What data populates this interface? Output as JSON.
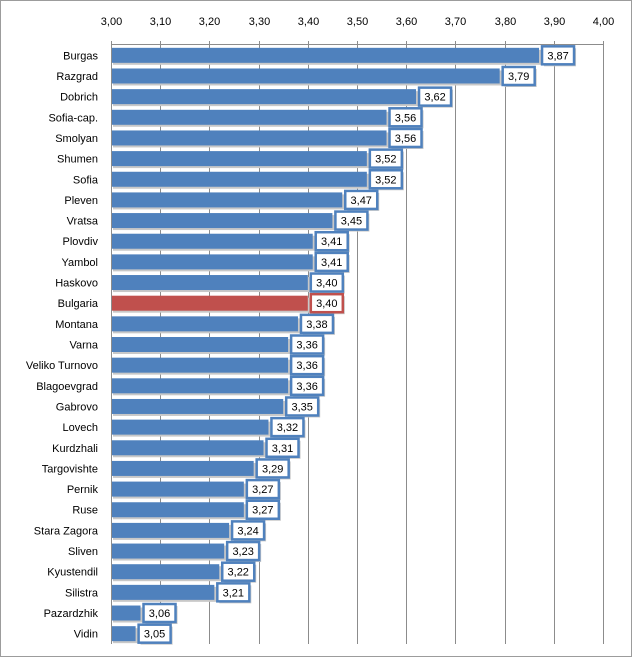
{
  "chart_data": {
    "type": "bar",
    "orientation": "horizontal",
    "categories": [
      "Burgas",
      "Razgrad",
      "Dobrich",
      "Sofia-cap.",
      "Smolyan",
      "Shumen",
      "Sofia",
      "Pleven",
      "Vratsa",
      "Plovdiv",
      "Yambol",
      "Haskovo",
      "Bulgaria",
      "Montana",
      "Varna",
      "Veliko Turnovo",
      "Blagoevgrad",
      "Gabrovo",
      "Lovech",
      "Kurdzhali",
      "Targovishte",
      "Pernik",
      "Ruse",
      "Stara Zagora",
      "Sliven",
      "Kyustendil",
      "Silistra",
      "Pazardzhik",
      "Vidin"
    ],
    "values": [
      3.87,
      3.79,
      3.62,
      3.56,
      3.56,
      3.52,
      3.52,
      3.47,
      3.45,
      3.41,
      3.41,
      3.4,
      3.4,
      3.38,
      3.36,
      3.36,
      3.36,
      3.35,
      3.32,
      3.31,
      3.29,
      3.27,
      3.27,
      3.24,
      3.23,
      3.22,
      3.21,
      3.06,
      3.05
    ],
    "value_labels": [
      "3,87",
      "3,79",
      "3,62",
      "3,56",
      "3,56",
      "3,52",
      "3,52",
      "3,47",
      "3,45",
      "3,41",
      "3,41",
      "3,40",
      "3,40",
      "3,38",
      "3,36",
      "3,36",
      "3,36",
      "3,35",
      "3,32",
      "3,31",
      "3,29",
      "3,27",
      "3,27",
      "3,24",
      "3,23",
      "3,22",
      "3,21",
      "3,06",
      "3,05"
    ],
    "xlim": [
      3.0,
      4.0
    ],
    "ticks": [
      3.0,
      3.1,
      3.2,
      3.3,
      3.4,
      3.5,
      3.6,
      3.7,
      3.8,
      3.9,
      4.0
    ],
    "tick_labels": [
      "3,00",
      "3,10",
      "3,20",
      "3,30",
      "3,40",
      "3,50",
      "3,60",
      "3,70",
      "3,80",
      "3,90",
      "4,00"
    ],
    "axis_position": "top",
    "grid": true,
    "title": "",
    "xlabel": "",
    "ylabel": "",
    "highlight_category": "Bulgaria",
    "colors": {
      "bar": "#4f81bd",
      "highlight": "#c0504d",
      "label_border": "#4f81bd",
      "highlight_label_border": "#c0504d",
      "grid": "#8c8c8c"
    }
  }
}
